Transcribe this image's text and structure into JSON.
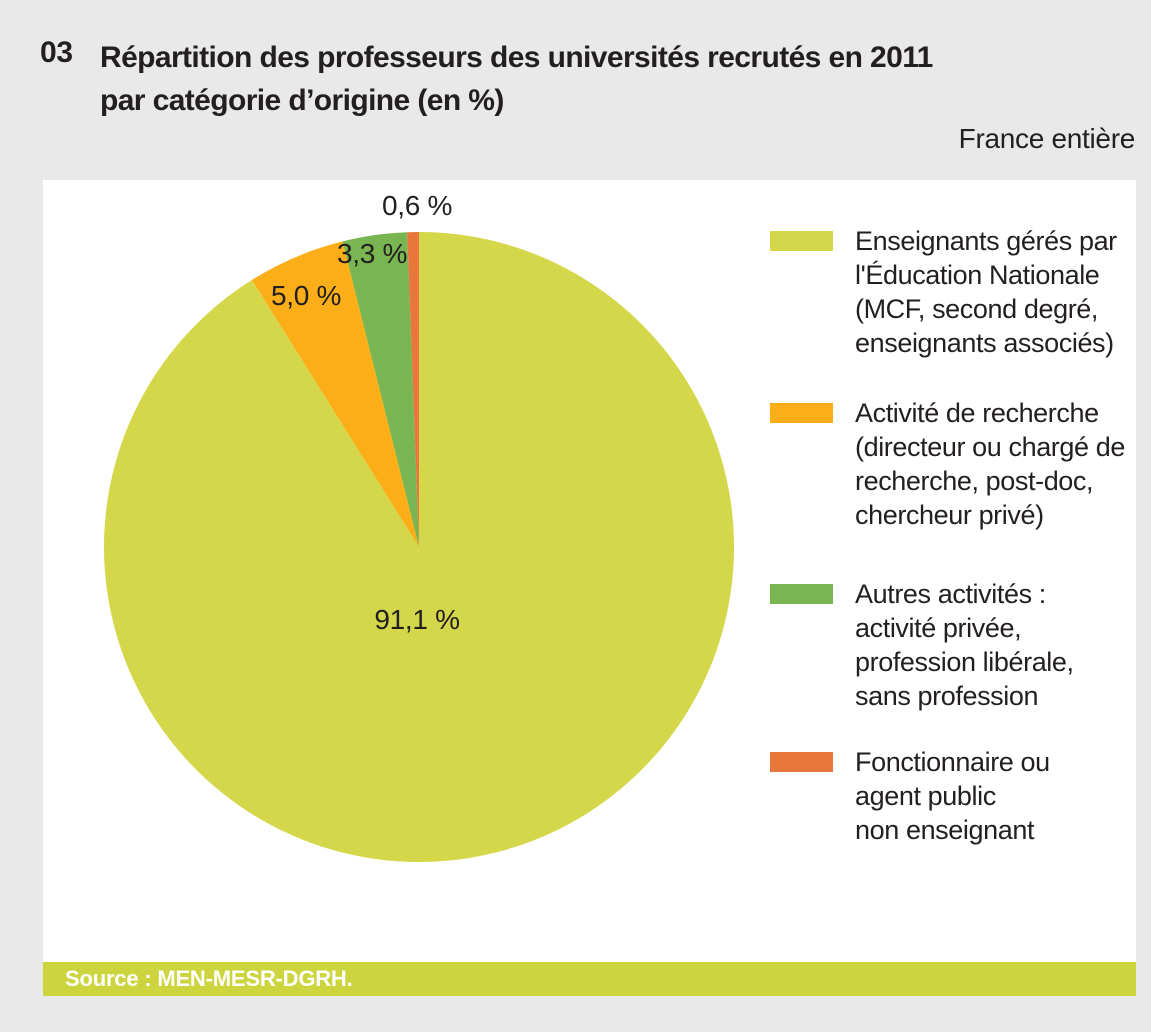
{
  "page": {
    "figure_number": "03",
    "title_line1": "Répartition des professeurs des universités recrutés en 2011",
    "title_line2": "par catégorie d’origine (en %)",
    "region_label": "France entière",
    "source": "Source : MEN-MESR-DGRH."
  },
  "colors": {
    "background": "#e9e9e9",
    "panel": "#ffffff",
    "text": "#231f20",
    "source_bar": "#ccd53e",
    "source_text": "#ffffff",
    "slice_chartreuse": "#d4d749",
    "slice_orange": "#fbae17",
    "slice_green": "#79b652",
    "slice_red_orange": "#e8773c"
  },
  "chart_data": {
    "type": "pie",
    "title": "Répartition des professeurs des universités recrutés en 2011 par catégorie d’origine (en %)",
    "units": "%",
    "start_angle_deg": 0,
    "direction": "clockwise",
    "legend_position": "right",
    "slices": [
      {
        "label": "Enseignants gérés par l'Éducation Nationale (MCF, second degré, enseignants associés)",
        "value": 91.1,
        "display": "91,1 %",
        "color": "#d4d749"
      },
      {
        "label": "Activité de recherche (directeur ou chargé de recherche, post-doc, chercheur privé)",
        "value": 5.0,
        "display": "5,0 %",
        "color": "#fbae17"
      },
      {
        "label": "Autres activités : activité privée, profession libérale, sans profession",
        "value": 3.3,
        "display": "3,3 %",
        "color": "#79b652"
      },
      {
        "label": "Fonctionnaire ou agent public non enseignant",
        "value": 0.6,
        "display": "0,6 %",
        "color": "#e8773c"
      }
    ]
  },
  "legend": {
    "items": [
      {
        "color": "#d4d749",
        "lines": [
          "Enseignants gérés par",
          "l'Éducation Nationale",
          "(MCF, second degré,",
          "enseignants associés)"
        ]
      },
      {
        "color": "#fbae17",
        "lines": [
          "Activité de recherche",
          "(directeur ou chargé de",
          "recherche, post-doc,",
          "chercheur privé)"
        ]
      },
      {
        "color": "#79b652",
        "lines": [
          "Autres activités :",
          "activité privée,",
          "profession libérale,",
          "sans profession"
        ]
      },
      {
        "color": "#e8773c",
        "lines": [
          "Fonctionnaire ou",
          "agent public",
          "non enseignant"
        ]
      }
    ]
  }
}
